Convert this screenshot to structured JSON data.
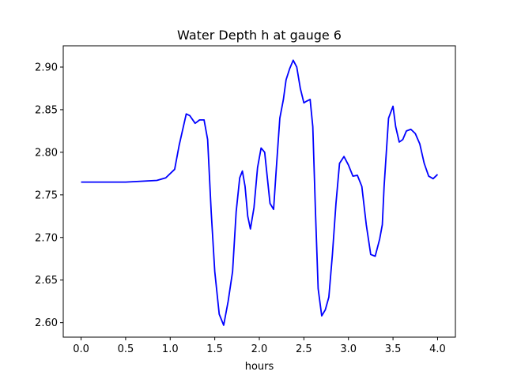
{
  "chart_data": {
    "type": "line",
    "title": "Water Depth h at gauge 6",
    "xlabel": "hours",
    "ylabel": "",
    "xlim": [
      -0.2,
      4.2
    ],
    "ylim": [
      2.583,
      2.925
    ],
    "grid": false,
    "x_ticks": [
      0.0,
      0.5,
      1.0,
      1.5,
      2.0,
      2.5,
      3.0,
      3.5,
      4.0
    ],
    "x_tick_labels": [
      "0.0",
      "0.5",
      "1.0",
      "1.5",
      "2.0",
      "2.5",
      "3.0",
      "3.5",
      "4.0"
    ],
    "y_ticks": [
      2.6,
      2.65,
      2.7,
      2.75,
      2.8,
      2.85,
      2.9
    ],
    "y_tick_labels": [
      "2.60",
      "2.65",
      "2.70",
      "2.75",
      "2.80",
      "2.85",
      "2.90"
    ],
    "series": [
      {
        "color": "#0000ff",
        "x": [
          0.0,
          0.5,
          0.85,
          0.95,
          1.05,
          1.1,
          1.18,
          1.22,
          1.28,
          1.33,
          1.38,
          1.42,
          1.46,
          1.5,
          1.55,
          1.6,
          1.65,
          1.7,
          1.74,
          1.78,
          1.81,
          1.84,
          1.87,
          1.9,
          1.94,
          1.98,
          2.02,
          2.06,
          2.09,
          2.12,
          2.16,
          2.19,
          2.23,
          2.27,
          2.3,
          2.34,
          2.38,
          2.42,
          2.46,
          2.5,
          2.53,
          2.57,
          2.6,
          2.63,
          2.66,
          2.7,
          2.74,
          2.78,
          2.82,
          2.86,
          2.9,
          2.95,
          3.0,
          3.05,
          3.1,
          3.15,
          3.2,
          3.25,
          3.3,
          3.35,
          3.38,
          3.4,
          3.45,
          3.5,
          3.53,
          3.57,
          3.61,
          3.65,
          3.7,
          3.75,
          3.8,
          3.85,
          3.9,
          3.95,
          4.0
        ],
        "y": [
          2.765,
          2.765,
          2.767,
          2.77,
          2.78,
          2.808,
          2.845,
          2.843,
          2.834,
          2.838,
          2.838,
          2.815,
          2.73,
          2.66,
          2.61,
          2.597,
          2.625,
          2.66,
          2.73,
          2.77,
          2.778,
          2.76,
          2.725,
          2.71,
          2.735,
          2.782,
          2.805,
          2.8,
          2.77,
          2.74,
          2.733,
          2.78,
          2.84,
          2.862,
          2.885,
          2.898,
          2.908,
          2.9,
          2.875,
          2.858,
          2.86,
          2.862,
          2.83,
          2.73,
          2.64,
          2.608,
          2.615,
          2.63,
          2.68,
          2.74,
          2.787,
          2.795,
          2.785,
          2.772,
          2.773,
          2.76,
          2.715,
          2.68,
          2.678,
          2.698,
          2.715,
          2.76,
          2.84,
          2.854,
          2.83,
          2.812,
          2.815,
          2.825,
          2.827,
          2.822,
          2.81,
          2.787,
          2.772,
          2.769,
          2.774
        ]
      }
    ]
  }
}
